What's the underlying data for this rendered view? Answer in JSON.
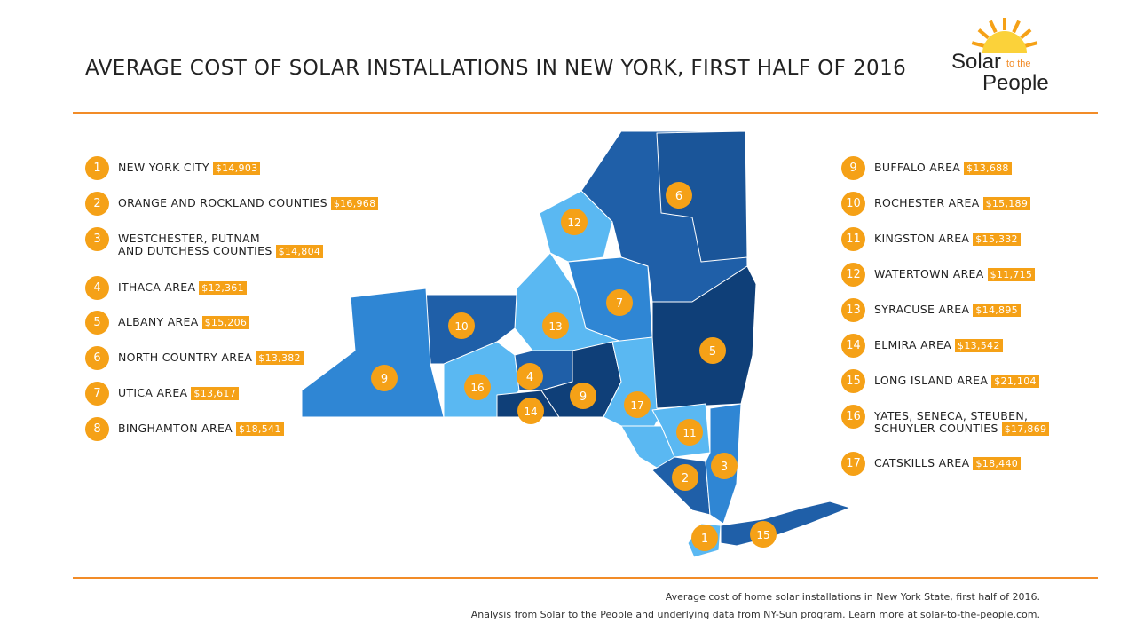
{
  "title": "AVERAGE COST OF SOLAR INSTALLATIONS IN NEW YORK, FIRST HALF OF 2016",
  "logo": {
    "line1": "Solar",
    "small": "to the",
    "line2": "People"
  },
  "regions_left": [
    {
      "num": "1",
      "name": "NEW YORK CITY",
      "price": "$14,903"
    },
    {
      "num": "2",
      "name": "ORANGE AND ROCKLAND COUNTIES",
      "price": "$16,968"
    },
    {
      "num": "3",
      "name": "WESTCHESTER, PUTNAM",
      "name2": "AND DUTCHESS COUNTIES",
      "price": "$14,804"
    },
    {
      "num": "4",
      "name": "ITHACA AREA",
      "price": "$12,361"
    },
    {
      "num": "5",
      "name": "ALBANY AREA",
      "price": "$15,206"
    },
    {
      "num": "6",
      "name": "NORTH COUNTRY AREA",
      "price": "$13,382"
    },
    {
      "num": "7",
      "name": "UTICA AREA",
      "price": "$13,617"
    },
    {
      "num": "8",
      "name": "BINGHAMTON AREA",
      "price": "$18,541"
    }
  ],
  "regions_right": [
    {
      "num": "9",
      "name": "BUFFALO AREA",
      "price": "$13,688"
    },
    {
      "num": "10",
      "name": "ROCHESTER AREA",
      "price": "$15,189"
    },
    {
      "num": "11",
      "name": "KINGSTON AREA",
      "price": "$15,332"
    },
    {
      "num": "12",
      "name": "WATERTOWN AREA",
      "price": "$11,715"
    },
    {
      "num": "13",
      "name": "SYRACUSE AREA",
      "price": "$14,895"
    },
    {
      "num": "14",
      "name": "ELMIRA AREA",
      "price": "$13,542"
    },
    {
      "num": "15",
      "name": "LONG ISLAND AREA",
      "price": "$21,104"
    },
    {
      "num": "16",
      "name": "YATES, SENECA, STEUBEN,",
      "name2": "SCHUYLER COUNTIES",
      "price": "$17,869"
    },
    {
      "num": "17",
      "name": "CATSKILLS AREA",
      "price": "$18,440"
    }
  ],
  "map_markers": [
    "1",
    "2",
    "3",
    "4",
    "5",
    "6",
    "7",
    "9",
    "10",
    "11",
    "12",
    "13",
    "14",
    "15",
    "16",
    "17"
  ],
  "footer": {
    "line1": "Average cost of home solar installations in New York State, first half of 2016.",
    "line2": "Analysis from Solar to the People and underlying data from NY-Sun program. Learn more at solar-to-the-people.com."
  },
  "colors": {
    "accent": "#f5a117",
    "rule": "#f28c28",
    "dark": "#0f3f78",
    "mid": "#1f66b0",
    "blue": "#2f86d4",
    "light": "#5ab8f2"
  }
}
